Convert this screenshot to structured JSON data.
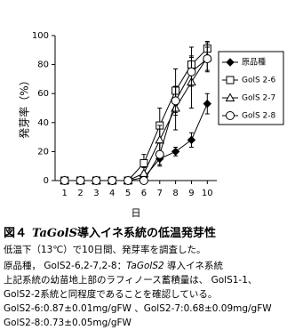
{
  "chart_data": {
    "type": "line",
    "x_label": "日",
    "y_label": "発芽率（%）",
    "x": [
      1,
      2,
      3,
      4,
      5,
      6,
      7,
      8,
      9,
      10
    ],
    "xlim": [
      0.4,
      10.6
    ],
    "xticks": [
      1,
      2,
      3,
      4,
      5,
      6,
      7,
      8,
      9,
      10
    ],
    "ylim": [
      0,
      100
    ],
    "yticks": [
      0,
      20,
      40,
      60,
      80,
      100
    ],
    "legend": "right",
    "series": [
      {
        "name": "原品種",
        "color": "#000000",
        "marker": "diamond",
        "values": [
          0,
          0,
          0,
          0,
          0,
          2,
          15,
          20,
          28,
          53
        ],
        "errors": [
          null,
          null,
          null,
          null,
          null,
          2,
          4,
          3,
          5,
          7
        ]
      },
      {
        "name": "GolS 2-6",
        "color": "#000000",
        "marker": "square",
        "values": [
          0,
          0,
          0,
          0,
          0,
          12,
          38,
          62,
          80,
          91
        ],
        "errors": [
          null,
          null,
          null,
          null,
          null,
          6,
          12,
          15,
          12,
          5
        ]
      },
      {
        "name": "GolS 2-7",
        "color": "#000000",
        "marker": "triangle",
        "values": [
          0,
          0,
          0,
          0,
          0,
          5,
          28,
          50,
          68,
          85
        ],
        "errors": [
          null,
          null,
          null,
          null,
          null,
          4,
          10,
          15,
          18,
          10
        ]
      },
      {
        "name": "GolS 2-8",
        "color": "#000000",
        "marker": "circle",
        "values": [
          0,
          0,
          0,
          0,
          0,
          0,
          18,
          55,
          75,
          84
        ],
        "errors": [
          null,
          null,
          null,
          null,
          null,
          1,
          8,
          10,
          10,
          8
        ]
      }
    ]
  },
  "caption": {
    "number": "図４",
    "title_italic": "TaGolS",
    "title": "導入イネ系統の低温発芽性",
    "lines": [
      "低温下（13℃）で10日間、発芽率を調査した。",
      "原品種， GolS2-6,2-7,2-8：",
      "上記系統の幼苗地上部のラフィノース蓄積量は、 GolS1-1、",
      "GolS2-2系統と同程度であることを確認している。",
      "GolS2-6:0.87±0.01mg/gFW 、GolS2-7:0.68±0.09mg/gFW",
      "GolS2-8:0.73±0.05mg/gFW"
    ],
    "line2_italic": "TaGolS2",
    "line2_end": " 導入イネ系統"
  }
}
